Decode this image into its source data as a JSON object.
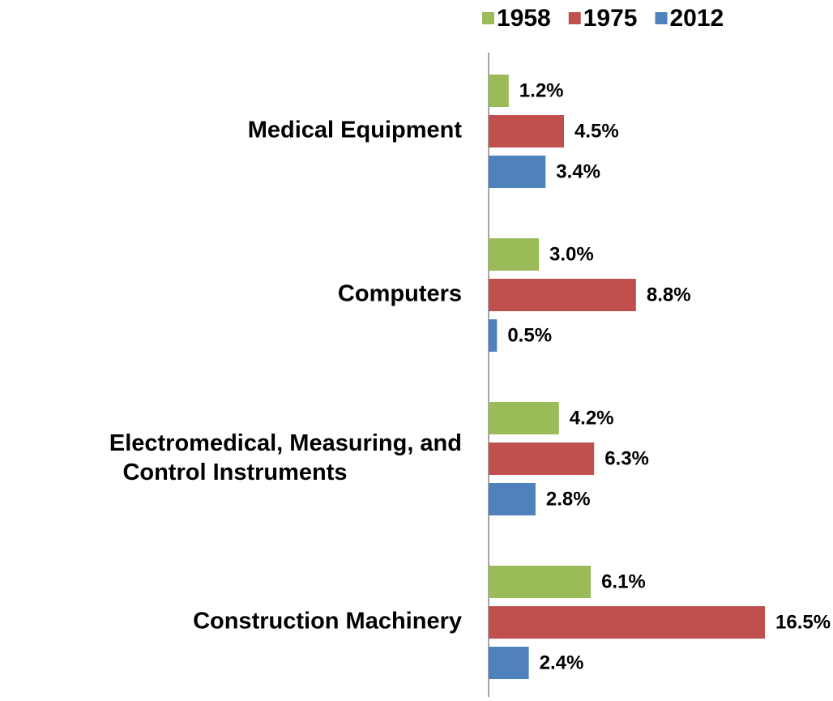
{
  "chart_data": {
    "type": "bar",
    "orientation": "horizontal",
    "categories": [
      "Medical Equipment",
      "Computers",
      "Electromedical, Measuring, and Control Instruments",
      "Construction Machinery"
    ],
    "series": [
      {
        "name": "1958",
        "color": "#9bbb59",
        "values": [
          1.2,
          3.0,
          4.2,
          6.1
        ],
        "value_labels": [
          "1.2%",
          "3.0%",
          "4.2%",
          "6.1%"
        ]
      },
      {
        "name": "1975",
        "color": "#c0504d",
        "values": [
          4.5,
          8.8,
          6.3,
          16.5
        ],
        "value_labels": [
          "4.5%",
          "8.8%",
          "6.3%",
          "16.5%"
        ]
      },
      {
        "name": "2012",
        "color": "#4f81bd",
        "values": [
          3.4,
          0.5,
          2.8,
          2.4
        ],
        "value_labels": [
          "3.4%",
          "0.5%",
          "2.8%",
          "2.4%"
        ]
      }
    ],
    "legend": "top-right"
  }
}
